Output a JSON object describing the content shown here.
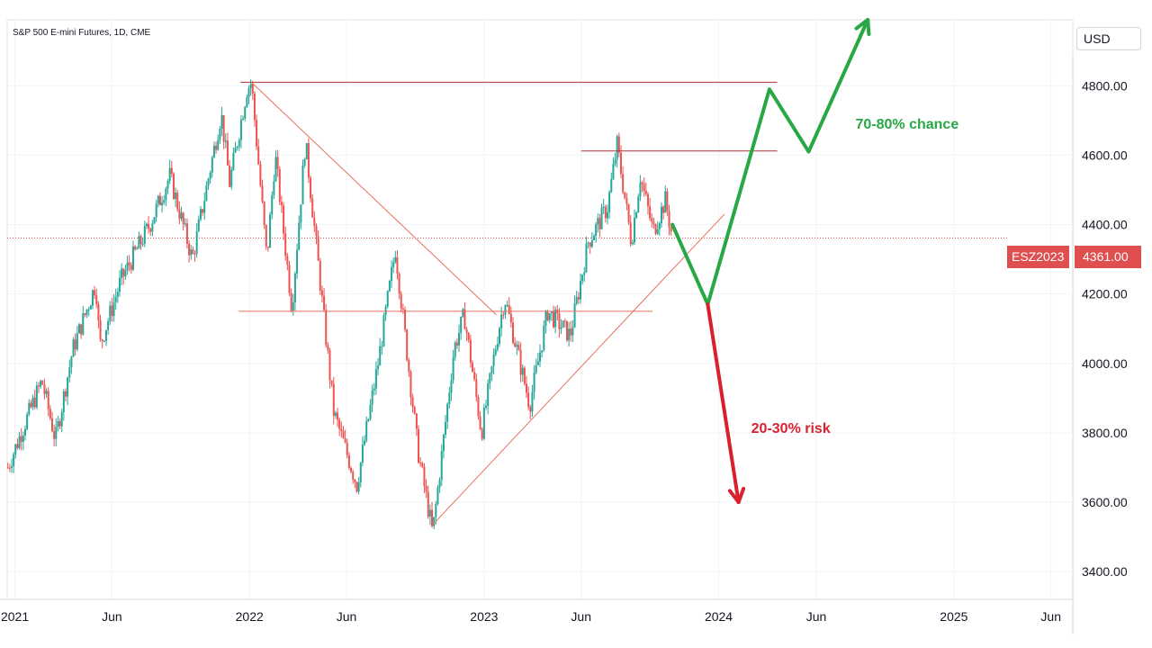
{
  "header": {
    "title": "S&P 500 E-mini Futures, 1D, CME",
    "currency": "USD"
  },
  "price_tag": {
    "symbol": "ESZ2023",
    "value": "4361.00"
  },
  "colors": {
    "up_candle": "#26a69a",
    "down_candle": "#ef5350",
    "trendline": "#e8705f",
    "resistance": "#b03030",
    "bull_arrow": "#27a844",
    "bear_arrow": "#d9212d",
    "price_tag_bg": "#e04f4f"
  },
  "chart_data": {
    "type": "line",
    "title": "S&P 500 E-mini Futures, 1D, CME",
    "y_ticks": [
      "3400.00",
      "3600.00",
      "3800.00",
      "4000.00",
      "4200.00",
      "4400.00",
      "4600.00",
      "4800.00"
    ],
    "x_ticks": [
      "2021",
      "Jun",
      "2022",
      "Jun",
      "2023",
      "Jun",
      "2024",
      "Jun",
      "2025",
      "Jun"
    ],
    "ylim": [
      3320,
      4990
    ],
    "xlim": [
      "2020-12-20",
      "2025-07-05"
    ],
    "grid": true,
    "series": [
      {
        "x": [
          "2020-12-21",
          "2021-01-15",
          "2021-02-12",
          "2021-03-05",
          "2021-04-01",
          "2021-05-07",
          "2021-05-13",
          "2021-06-15",
          "2021-07-30",
          "2021-08-30",
          "2021-10-04",
          "2021-11-18",
          "2021-12-01",
          "2021-12-28",
          "2022-01-04",
          "2022-01-28",
          "2022-02-10",
          "2022-03-08",
          "2022-03-29",
          "2022-05-12",
          "2022-06-17",
          "2022-07-20",
          "2022-08-16",
          "2022-09-20",
          "2022-10-13",
          "2022-11-15",
          "2022-12-01",
          "2022-12-28",
          "2023-01-20",
          "2023-02-02",
          "2023-03-13",
          "2023-04-10",
          "2023-05-15",
          "2023-06-12",
          "2023-07-12",
          "2023-07-27",
          "2023-08-18",
          "2023-09-01",
          "2023-09-21",
          "2023-10-10",
          "2023-10-21"
        ],
        "y": [
          3700,
          3820,
          3950,
          3780,
          4040,
          4230,
          4050,
          4240,
          4400,
          4540,
          4300,
          4720,
          4520,
          4790,
          4810,
          4300,
          4600,
          4160,
          4640,
          3860,
          3650,
          4000,
          4330,
          3750,
          3510,
          4040,
          4140,
          3800,
          4060,
          4190,
          3880,
          4150,
          4080,
          4350,
          4450,
          4630,
          4350,
          4540,
          4380,
          4470,
          4361
        ],
        "values": [
          3700,
          3820,
          3950,
          3780,
          4040,
          4230,
          4050,
          4240,
          4400,
          4540,
          4300,
          4720,
          4520,
          4790,
          4810,
          4300,
          4600,
          4160,
          4640,
          3860,
          3650,
          4000,
          4330,
          3750,
          3510,
          4040,
          4140,
          3800,
          4060,
          4190,
          3880,
          4150,
          4080,
          4350,
          4450,
          4630,
          4350,
          4540,
          4380,
          4470,
          4361
        ]
      }
    ],
    "levels": [
      {
        "y": 4361,
        "from": "2020-12-20",
        "to": "2025-07-05",
        "kind": "last-price"
      },
      {
        "y": 4810,
        "from": "2021-12-18",
        "to": "2024-04-01",
        "kind": "resistance"
      },
      {
        "y": 4612,
        "from": "2023-06-01",
        "to": "2024-04-01",
        "kind": "resistance"
      },
      {
        "y": 4150,
        "from": "2021-12-15",
        "to": "2023-09-20",
        "kind": "support"
      }
    ],
    "trendlines": [
      {
        "from": [
          "2022-01-04",
          4810
        ],
        "to": [
          "2023-01-20",
          4140
        ]
      },
      {
        "from": [
          "2022-10-13",
          3535
        ],
        "to": [
          "2024-01-10",
          4430
        ]
      }
    ],
    "projections": [
      {
        "label": "70-80% chance",
        "color": "#27a844",
        "path": [
          [
            "2023-10-21",
            4400
          ],
          [
            "2023-12-15",
            4170
          ],
          [
            "2024-03-20",
            4790
          ],
          [
            "2024-05-20",
            4610
          ],
          [
            "2024-08-20",
            4990
          ]
        ]
      },
      {
        "label": "20-30% risk",
        "color": "#d9212d",
        "path": [
          [
            "2023-12-15",
            4170
          ],
          [
            "2024-02-01",
            3600
          ]
        ]
      }
    ],
    "annotations": [
      "70-80% chance",
      "20-30% risk"
    ]
  }
}
